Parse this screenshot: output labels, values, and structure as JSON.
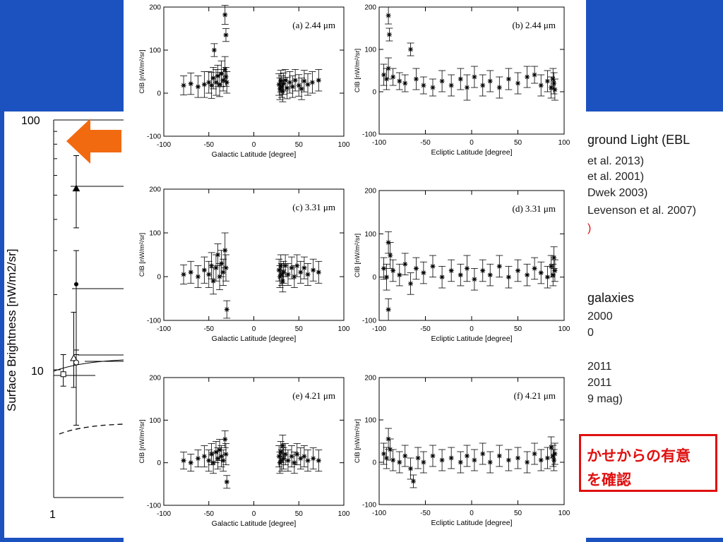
{
  "background_plot": {
    "ylabel": "Surface Brightness [nW/m2/sr]",
    "yticks": [
      "100",
      "10"
    ],
    "xticks": [
      "1"
    ],
    "points": [
      {
        "x": 1.1,
        "y": 9.6,
        "ylo": 8.6,
        "yhi": 11.5,
        "marker": "square"
      },
      {
        "x": 1.22,
        "y": 11.1,
        "ylo": 8.5,
        "yhi": 17.0,
        "marker": "triangle-open"
      },
      {
        "x": 1.25,
        "y": 10.7,
        "ylo": 6.0,
        "yhi": 12.0,
        "marker": "circle-open"
      },
      {
        "x": 1.25,
        "y": 22.0,
        "ylo": 11.5,
        "yhi": 30.0,
        "marker": "circle-filled"
      },
      {
        "x": 1.25,
        "y": 53.0,
        "ylo": 37.0,
        "yhi": 72.0,
        "marker": "triangle-filled"
      }
    ]
  },
  "legend_fragments": [
    {
      "text": "ground Light (EBL",
      "style": "big",
      "color": "#111111"
    },
    {
      "text": "et al. 2013)",
      "style": "normal",
      "color": "#222222"
    },
    {
      "text": "et al. 2001)",
      "style": "normal",
      "color": "#222222"
    },
    {
      "text": "Dwek 2003)",
      "style": "normal",
      "color": "#222222"
    },
    {
      "text": "Levenson et al. 2007)",
      "style": "normal",
      "color": "#222222"
    },
    {
      "text": ")",
      "style": "normal",
      "color": "#e01010"
    },
    {
      "text": "galaxies",
      "style": "big",
      "color": "#111111"
    },
    {
      "text": "2000",
      "style": "normal",
      "color": "#222222"
    },
    {
      "text": "0",
      "style": "normal",
      "color": "#222222"
    },
    {
      "text": "2011",
      "style": "normal",
      "color": "#222222"
    },
    {
      "text": "2011",
      "style": "normal",
      "color": "#222222"
    },
    {
      "text": "9 mag)",
      "style": "normal",
      "color": "#222222"
    }
  ],
  "callout": {
    "line1": "かせからの有意",
    "line2": "を確認"
  },
  "chart_data": [
    {
      "type": "scatter",
      "title": "(a) 2.44 μm",
      "xlabel": "Galactic Latitude [degree]",
      "ylabel": "CIB [nW/m²/sr]",
      "xlim": [
        -100,
        100
      ],
      "ylim": [
        -100,
        200
      ],
      "xticks": [
        -100,
        -50,
        0,
        50,
        100
      ],
      "yticks": [
        -100,
        0,
        100,
        200
      ],
      "points": [
        {
          "x": -78,
          "y": 18,
          "err": 22
        },
        {
          "x": -70,
          "y": 22,
          "err": 25
        },
        {
          "x": -62,
          "y": 15,
          "err": 25
        },
        {
          "x": -55,
          "y": 20,
          "err": 30
        },
        {
          "x": -50,
          "y": 25,
          "err": 25
        },
        {
          "x": -47,
          "y": 18,
          "err": 30
        },
        {
          "x": -45,
          "y": 35,
          "err": 25
        },
        {
          "x": -42,
          "y": 25,
          "err": 30
        },
        {
          "x": -40,
          "y": 40,
          "err": 25
        },
        {
          "x": -38,
          "y": 20,
          "err": 28
        },
        {
          "x": -36,
          "y": 45,
          "err": 30
        },
        {
          "x": -34,
          "y": 30,
          "err": 25
        },
        {
          "x": -32,
          "y": 55,
          "err": 30
        },
        {
          "x": -31,
          "y": 38,
          "err": 22
        },
        {
          "x": -30,
          "y": 25,
          "err": 25
        },
        {
          "x": -44,
          "y": 100,
          "err": 15
        },
        {
          "x": -32,
          "y": 182,
          "err": 22
        },
        {
          "x": -31,
          "y": 135,
          "err": 15
        },
        {
          "x": 28,
          "y": 20,
          "err": 25
        },
        {
          "x": 29,
          "y": 10,
          "err": 25
        },
        {
          "x": 30,
          "y": 28,
          "err": 25
        },
        {
          "x": 31,
          "y": 15,
          "err": 25
        },
        {
          "x": 32,
          "y": 5,
          "err": 25
        },
        {
          "x": 33,
          "y": 22,
          "err": 25
        },
        {
          "x": 35,
          "y": 30,
          "err": 25
        },
        {
          "x": 37,
          "y": 12,
          "err": 25
        },
        {
          "x": 40,
          "y": 25,
          "err": 25
        },
        {
          "x": 43,
          "y": 15,
          "err": 25
        },
        {
          "x": 46,
          "y": 30,
          "err": 25
        },
        {
          "x": 50,
          "y": 18,
          "err": 25
        },
        {
          "x": 53,
          "y": 10,
          "err": 25
        },
        {
          "x": 56,
          "y": 28,
          "err": 25
        },
        {
          "x": 60,
          "y": 20,
          "err": 25
        },
        {
          "x": 65,
          "y": 25,
          "err": 25
        },
        {
          "x": 72,
          "y": 30,
          "err": 25
        }
      ]
    },
    {
      "type": "scatter",
      "title": "(b) 2.44 μm",
      "xlabel": "Ecliptic Latitude [degree]",
      "ylabel": "CIB [nW/m²/sr]",
      "xlim": [
        -100,
        100
      ],
      "ylim": [
        -100,
        200
      ],
      "xticks": [
        -100,
        -50,
        0,
        50,
        100
      ],
      "yticks": [
        -100,
        0,
        100,
        200
      ],
      "points": [
        {
          "x": -95,
          "y": 40,
          "err": 25
        },
        {
          "x": -92,
          "y": 30,
          "err": 25
        },
        {
          "x": -90,
          "y": 55,
          "err": 25
        },
        {
          "x": -90,
          "y": 180,
          "err": 20
        },
        {
          "x": -89,
          "y": 135,
          "err": 15
        },
        {
          "x": -85,
          "y": 35,
          "err": 20
        },
        {
          "x": -78,
          "y": 25,
          "err": 20
        },
        {
          "x": -72,
          "y": 20,
          "err": 20
        },
        {
          "x": -66,
          "y": 100,
          "err": 15
        },
        {
          "x": -60,
          "y": 30,
          "err": 25
        },
        {
          "x": -52,
          "y": 15,
          "err": 20
        },
        {
          "x": -42,
          "y": 10,
          "err": 20
        },
        {
          "x": -32,
          "y": 25,
          "err": 25
        },
        {
          "x": -22,
          "y": 15,
          "err": 25
        },
        {
          "x": -12,
          "y": 30,
          "err": 25
        },
        {
          "x": -5,
          "y": 10,
          "err": 30
        },
        {
          "x": 3,
          "y": 35,
          "err": 25
        },
        {
          "x": 12,
          "y": 15,
          "err": 25
        },
        {
          "x": 20,
          "y": 25,
          "err": 25
        },
        {
          "x": 30,
          "y": 10,
          "err": 25
        },
        {
          "x": 40,
          "y": 30,
          "err": 25
        },
        {
          "x": 50,
          "y": 20,
          "err": 25
        },
        {
          "x": 60,
          "y": 35,
          "err": 25
        },
        {
          "x": 68,
          "y": 40,
          "err": 20
        },
        {
          "x": 75,
          "y": 15,
          "err": 25
        },
        {
          "x": 82,
          "y": 25,
          "err": 25
        },
        {
          "x": 86,
          "y": 10,
          "err": 25
        },
        {
          "x": 88,
          "y": 30,
          "err": 25
        },
        {
          "x": 89,
          "y": 20,
          "err": 25
        },
        {
          "x": 90,
          "y": 5,
          "err": 25
        }
      ]
    },
    {
      "type": "scatter",
      "title": "(c) 3.31 μm",
      "xlabel": "Galactic Latitude [degree]",
      "ylabel": "CIB [nW/m²/sr]",
      "xlim": [
        -100,
        100
      ],
      "ylim": [
        -100,
        200
      ],
      "xticks": [
        -100,
        -50,
        0,
        50,
        100
      ],
      "yticks": [
        -100,
        0,
        100,
        200
      ],
      "points": [
        {
          "x": -78,
          "y": 5,
          "err": 22
        },
        {
          "x": -70,
          "y": 10,
          "err": 25
        },
        {
          "x": -62,
          "y": 0,
          "err": 25
        },
        {
          "x": -55,
          "y": 15,
          "err": 30
        },
        {
          "x": -50,
          "y": 5,
          "err": 30
        },
        {
          "x": -47,
          "y": 25,
          "err": 30
        },
        {
          "x": -45,
          "y": -10,
          "err": 30
        },
        {
          "x": -42,
          "y": 20,
          "err": 30
        },
        {
          "x": -40,
          "y": 50,
          "err": 25
        },
        {
          "x": -38,
          "y": 0,
          "err": 30
        },
        {
          "x": -36,
          "y": 30,
          "err": 30
        },
        {
          "x": -34,
          "y": 10,
          "err": 30
        },
        {
          "x": -32,
          "y": 60,
          "err": 40
        },
        {
          "x": -31,
          "y": 20,
          "err": 30
        },
        {
          "x": -30,
          "y": -75,
          "err": 20
        },
        {
          "x": 28,
          "y": 15,
          "err": 25
        },
        {
          "x": 29,
          "y": 0,
          "err": 25
        },
        {
          "x": 30,
          "y": 25,
          "err": 25
        },
        {
          "x": 31,
          "y": 5,
          "err": 25
        },
        {
          "x": 32,
          "y": -10,
          "err": 25
        },
        {
          "x": 33,
          "y": 10,
          "err": 25
        },
        {
          "x": 35,
          "y": 25,
          "err": 25
        },
        {
          "x": 38,
          "y": 5,
          "err": 25
        },
        {
          "x": 42,
          "y": 20,
          "err": 25
        },
        {
          "x": 45,
          "y": 0,
          "err": 25
        },
        {
          "x": 48,
          "y": 25,
          "err": 25
        },
        {
          "x": 52,
          "y": 10,
          "err": 25
        },
        {
          "x": 56,
          "y": 20,
          "err": 25
        },
        {
          "x": 60,
          "y": 5,
          "err": 25
        },
        {
          "x": 66,
          "y": 15,
          "err": 25
        },
        {
          "x": 72,
          "y": 10,
          "err": 25
        }
      ]
    },
    {
      "type": "scatter",
      "title": "(d) 3.31 μm",
      "xlabel": "Ecliptic Latitude [degree]",
      "ylabel": "CIB [nW/m²/sr]",
      "xlim": [
        -100,
        100
      ],
      "ylim": [
        -100,
        200
      ],
      "xticks": [
        -100,
        -50,
        0,
        50,
        100
      ],
      "yticks": [
        -100,
        0,
        100,
        200
      ],
      "points": [
        {
          "x": -95,
          "y": 20,
          "err": 25
        },
        {
          "x": -92,
          "y": 0,
          "err": 30
        },
        {
          "x": -90,
          "y": 80,
          "err": 25
        },
        {
          "x": -90,
          "y": -75,
          "err": 25
        },
        {
          "x": -88,
          "y": 50,
          "err": 30
        },
        {
          "x": -85,
          "y": 15,
          "err": 25
        },
        {
          "x": -78,
          "y": 5,
          "err": 25
        },
        {
          "x": -72,
          "y": 30,
          "err": 25
        },
        {
          "x": -66,
          "y": -15,
          "err": 25
        },
        {
          "x": -60,
          "y": 20,
          "err": 25
        },
        {
          "x": -52,
          "y": 10,
          "err": 25
        },
        {
          "x": -42,
          "y": 25,
          "err": 25
        },
        {
          "x": -32,
          "y": 0,
          "err": 25
        },
        {
          "x": -22,
          "y": 15,
          "err": 25
        },
        {
          "x": -12,
          "y": 5,
          "err": 25
        },
        {
          "x": -5,
          "y": 20,
          "err": 30
        },
        {
          "x": 3,
          "y": -5,
          "err": 25
        },
        {
          "x": 12,
          "y": 15,
          "err": 25
        },
        {
          "x": 20,
          "y": 5,
          "err": 25
        },
        {
          "x": 30,
          "y": 25,
          "err": 25
        },
        {
          "x": 40,
          "y": 0,
          "err": 25
        },
        {
          "x": 50,
          "y": 15,
          "err": 25
        },
        {
          "x": 60,
          "y": 5,
          "err": 25
        },
        {
          "x": 68,
          "y": 20,
          "err": 25
        },
        {
          "x": 75,
          "y": 10,
          "err": 25
        },
        {
          "x": 82,
          "y": 0,
          "err": 25
        },
        {
          "x": 86,
          "y": 25,
          "err": 25
        },
        {
          "x": 88,
          "y": 5,
          "err": 25
        },
        {
          "x": 89,
          "y": 45,
          "err": 25
        },
        {
          "x": 90,
          "y": 15,
          "err": 25
        }
      ]
    },
    {
      "type": "scatter",
      "title": "(e) 4.21 μm",
      "xlabel": "Galactic Latitude [degree]",
      "ylabel": "CIB [nW/m²/sr]",
      "xlim": [
        -100,
        100
      ],
      "ylim": [
        -100,
        200
      ],
      "xticks": [
        -100,
        -50,
        0,
        50,
        100
      ],
      "yticks": [
        -100,
        0,
        100,
        200
      ],
      "points": [
        {
          "x": -78,
          "y": 5,
          "err": 20
        },
        {
          "x": -70,
          "y": 0,
          "err": 20
        },
        {
          "x": -62,
          "y": 10,
          "err": 20
        },
        {
          "x": -55,
          "y": 15,
          "err": 25
        },
        {
          "x": -50,
          "y": 5,
          "err": 25
        },
        {
          "x": -47,
          "y": 20,
          "err": 25
        },
        {
          "x": -45,
          "y": 0,
          "err": 25
        },
        {
          "x": -42,
          "y": 25,
          "err": 25
        },
        {
          "x": -40,
          "y": 10,
          "err": 25
        },
        {
          "x": -38,
          "y": 30,
          "err": 25
        },
        {
          "x": -36,
          "y": 15,
          "err": 25
        },
        {
          "x": -34,
          "y": 5,
          "err": 25
        },
        {
          "x": -32,
          "y": 55,
          "err": 20
        },
        {
          "x": -31,
          "y": 20,
          "err": 25
        },
        {
          "x": -30,
          "y": -45,
          "err": 15
        },
        {
          "x": 28,
          "y": 15,
          "err": 25
        },
        {
          "x": 29,
          "y": 0,
          "err": 25
        },
        {
          "x": 30,
          "y": 25,
          "err": 25
        },
        {
          "x": 31,
          "y": 5,
          "err": 25
        },
        {
          "x": 32,
          "y": 40,
          "err": 25
        },
        {
          "x": 33,
          "y": 10,
          "err": 25
        },
        {
          "x": 35,
          "y": 20,
          "err": 25
        },
        {
          "x": 38,
          "y": 5,
          "err": 25
        },
        {
          "x": 42,
          "y": 15,
          "err": 25
        },
        {
          "x": 45,
          "y": 0,
          "err": 25
        },
        {
          "x": 48,
          "y": 20,
          "err": 25
        },
        {
          "x": 52,
          "y": 10,
          "err": 25
        },
        {
          "x": 56,
          "y": 15,
          "err": 25
        },
        {
          "x": 60,
          "y": 5,
          "err": 25
        },
        {
          "x": 66,
          "y": 10,
          "err": 25
        },
        {
          "x": 72,
          "y": 5,
          "err": 25
        }
      ]
    },
    {
      "type": "scatter",
      "title": "(f) 4.21 μm",
      "xlabel": "Ecliptic Latitude [degree]",
      "ylabel": "CIB [nW/m²/sr]",
      "xlim": [
        -100,
        100
      ],
      "ylim": [
        -100,
        200
      ],
      "xticks": [
        -100,
        -50,
        0,
        50,
        100
      ],
      "yticks": [
        -100,
        0,
        100,
        200
      ],
      "points": [
        {
          "x": -95,
          "y": 20,
          "err": 25
        },
        {
          "x": -92,
          "y": 10,
          "err": 25
        },
        {
          "x": -90,
          "y": 55,
          "err": 25
        },
        {
          "x": -88,
          "y": 30,
          "err": 25
        },
        {
          "x": -85,
          "y": 5,
          "err": 25
        },
        {
          "x": -78,
          "y": 0,
          "err": 25
        },
        {
          "x": -72,
          "y": 15,
          "err": 25
        },
        {
          "x": -66,
          "y": -15,
          "err": 25
        },
        {
          "x": -63,
          "y": -45,
          "err": 15
        },
        {
          "x": -58,
          "y": 10,
          "err": 25
        },
        {
          "x": -52,
          "y": 0,
          "err": 25
        },
        {
          "x": -42,
          "y": 15,
          "err": 25
        },
        {
          "x": -32,
          "y": 5,
          "err": 25
        },
        {
          "x": -22,
          "y": 10,
          "err": 25
        },
        {
          "x": -12,
          "y": 0,
          "err": 25
        },
        {
          "x": -5,
          "y": 15,
          "err": 25
        },
        {
          "x": 3,
          "y": 5,
          "err": 25
        },
        {
          "x": 12,
          "y": 20,
          "err": 25
        },
        {
          "x": 20,
          "y": 0,
          "err": 25
        },
        {
          "x": 30,
          "y": 15,
          "err": 25
        },
        {
          "x": 40,
          "y": 5,
          "err": 25
        },
        {
          "x": 50,
          "y": 10,
          "err": 25
        },
        {
          "x": 60,
          "y": 0,
          "err": 25
        },
        {
          "x": 68,
          "y": 20,
          "err": 25
        },
        {
          "x": 75,
          "y": 5,
          "err": 25
        },
        {
          "x": 82,
          "y": 10,
          "err": 25
        },
        {
          "x": 86,
          "y": 35,
          "err": 25
        },
        {
          "x": 88,
          "y": 15,
          "err": 25
        },
        {
          "x": 89,
          "y": 5,
          "err": 25
        },
        {
          "x": 90,
          "y": 20,
          "err": 25
        }
      ]
    }
  ]
}
